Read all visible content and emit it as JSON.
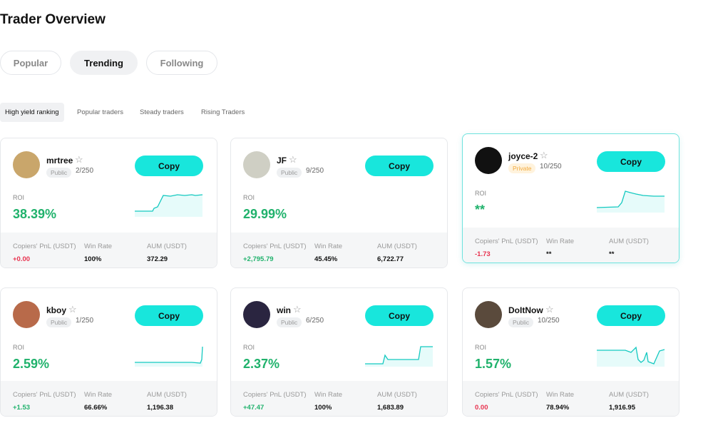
{
  "header": {
    "title": "Trader Overview"
  },
  "tabs": [
    "Popular",
    "Trending",
    "Following"
  ],
  "subtabs": [
    "High yield ranking",
    "Popular traders",
    "Steady traders",
    "Rising Traders"
  ],
  "stat_labels": [
    "Copiers' PnL (USDT)",
    "Win Rate",
    "AUM (USDT)"
  ],
  "roi_label": "ROI",
  "copy_label": "Copy",
  "cards": [
    {
      "name": "mrtree",
      "visibility": "Public",
      "copiers": "2/250",
      "roi": "38.39%",
      "pnl": "+0.00",
      "win_rate": "100%",
      "aum": "372.29"
    },
    {
      "name": "JF",
      "visibility": "Public",
      "copiers": "9/250",
      "roi": "29.99%",
      "pnl": "+2,795.79",
      "win_rate": "45.45%",
      "aum": "6,722.77"
    },
    {
      "name": "joyce-2",
      "visibility": "Private",
      "copiers": "10/250",
      "roi": "**",
      "pnl": "-1.73",
      "win_rate": "**",
      "aum": "**"
    },
    {
      "name": "kboy",
      "visibility": "Public",
      "copiers": "1/250",
      "roi": "2.59%",
      "pnl": "+1.53",
      "win_rate": "66.66%",
      "aum": "1,196.38"
    },
    {
      "name": "win",
      "visibility": "Public",
      "copiers": "6/250",
      "roi": "2.37%",
      "pnl": "+47.47",
      "win_rate": "100%",
      "aum": "1,683.89"
    },
    {
      "name": "DoItNow",
      "visibility": "Public",
      "copiers": "10/250",
      "roi": "1.57%",
      "pnl": "0.00",
      "win_rate": "78.94%",
      "aum": "1,916.95"
    }
  ]
}
